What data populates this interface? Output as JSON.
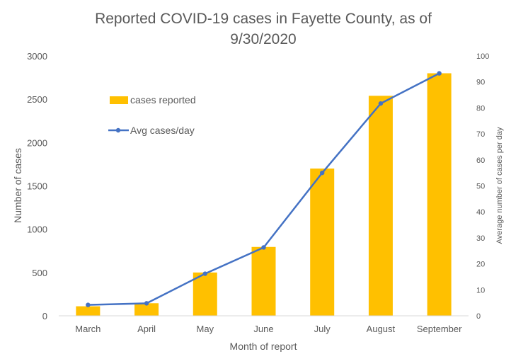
{
  "chart_data": {
    "type": "bar",
    "title": "Reported COVID-19 cases in Fayette County, as of 9/30/2020",
    "title_lines": [
      "Reported COVID-19 cases in Fayette County, as of",
      "9/30/2020"
    ],
    "xlabel": "Month of report",
    "ylabel": "Number of cases",
    "y2label": "Average number of cases per day",
    "categories": [
      "March",
      "April",
      "May",
      "June",
      "July",
      "August",
      "September"
    ],
    "ylim": [
      0,
      3000
    ],
    "y_ticks": [
      0,
      500,
      1000,
      1500,
      2000,
      2500,
      3000
    ],
    "y2lim": [
      0,
      100
    ],
    "y2_ticks": [
      0,
      10,
      20,
      30,
      40,
      50,
      60,
      70,
      80,
      90,
      100
    ],
    "grid": false,
    "legend_position": "top-left",
    "series": [
      {
        "name": "cases reported",
        "type": "bar",
        "axis": "left",
        "color": "#FFC000",
        "values": [
          110,
          145,
          500,
          795,
          1700,
          2540,
          2800
        ]
      },
      {
        "name": "Avg cases/day",
        "type": "line",
        "axis": "right",
        "color": "#4472C4",
        "values": [
          4.2,
          4.8,
          16.2,
          26.3,
          55.0,
          81.7,
          93.3
        ]
      }
    ]
  }
}
